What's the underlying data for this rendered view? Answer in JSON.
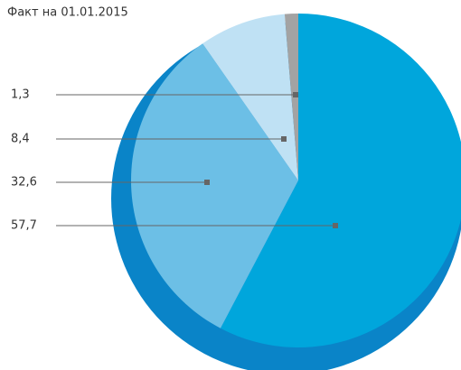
{
  "chart_data": {
    "type": "pie",
    "title": "Факт на 01.01.2015",
    "categories": [
      null,
      null,
      null,
      null
    ],
    "values": [
      57.7,
      32.6,
      8.4,
      1.3
    ],
    "value_labels": [
      "57,7",
      "32,6",
      "8,4",
      "1,3"
    ],
    "colors": [
      "#00a6dc",
      "#6cbfe6",
      "#bfe1f4",
      "#a3a3a3"
    ]
  }
}
